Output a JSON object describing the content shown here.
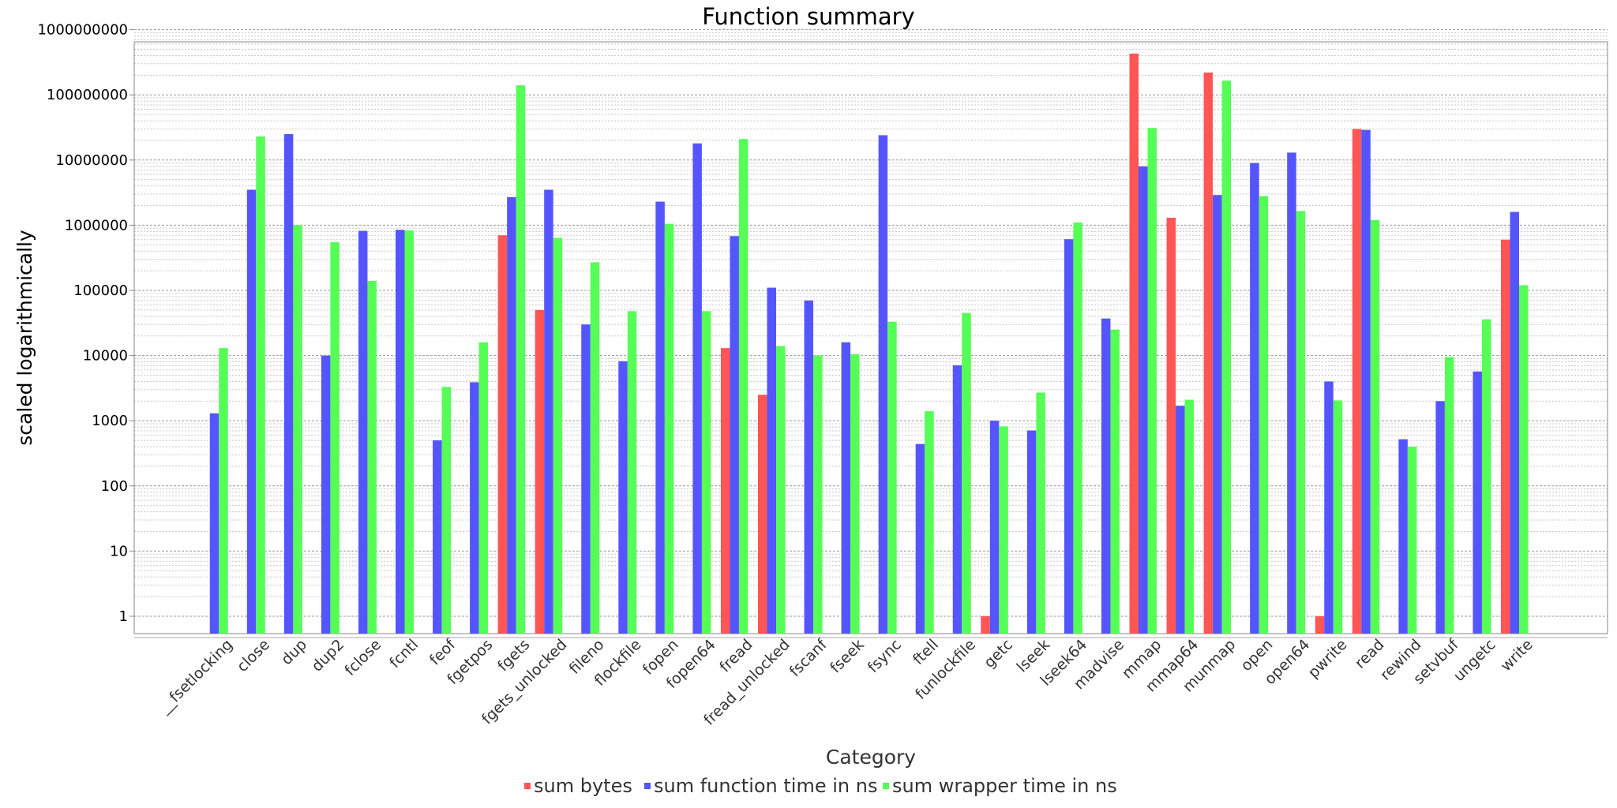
{
  "chart_data": {
    "type": "bar",
    "title": "Function summary",
    "xlabel": "Category",
    "ylabel": "scaled logarithmically",
    "yscale": "log",
    "ylim": [
      0.6,
      1000000000
    ],
    "yticks": [
      "1",
      "10",
      "100",
      "1000",
      "10000",
      "100000",
      "1000000",
      "10000000",
      "100000000",
      "1000000000"
    ],
    "grid": true,
    "legend_position": "bottom",
    "categories": [
      "__fsetlocking",
      "close",
      "dup",
      "dup2",
      "fclose",
      "fcntl",
      "feof",
      "fgetpos",
      "fgets",
      "fgets_unlocked",
      "fileno",
      "flockfile",
      "fopen",
      "fopen64",
      "fread",
      "fread_unlocked",
      "fscanf",
      "fseek",
      "fsync",
      "ftell",
      "funlockfile",
      "getc",
      "lseek",
      "lseek64",
      "madvise",
      "mmap",
      "mmap64",
      "munmap",
      "open",
      "open64",
      "pwrite",
      "read",
      "rewind",
      "setvbuf",
      "ungetc",
      "write"
    ],
    "series": [
      {
        "name": "sum bytes",
        "color": "#ff5555",
        "values": [
          null,
          null,
          null,
          null,
          null,
          null,
          null,
          null,
          700000,
          50000,
          null,
          null,
          null,
          null,
          13000,
          2500,
          null,
          null,
          null,
          null,
          null,
          1,
          null,
          null,
          null,
          430000000,
          1300000,
          220000000,
          null,
          null,
          1,
          30000000,
          null,
          null,
          null,
          600000
        ]
      },
      {
        "name": "sum function time in ns",
        "color": "#5555ff",
        "values": [
          1300,
          3500000,
          25000000,
          10000,
          820000,
          850000,
          500,
          3900,
          2700000,
          3500000,
          30000,
          8200,
          2300000,
          18000000,
          680000,
          110000,
          70000,
          16000,
          24000000,
          440,
          7100,
          1000,
          710,
          610000,
          37000,
          8000000,
          1700,
          2900000,
          9000000,
          13000000,
          4000,
          29000000,
          520,
          2000,
          5700,
          1600000
        ]
      },
      {
        "name": "sum wrapper time in ns",
        "color": "#55ff55",
        "values": [
          13000,
          23000000,
          1000000,
          550000,
          140000,
          830000,
          3300,
          16000,
          140000000,
          640000,
          270000,
          48000,
          1050000,
          48000,
          21000000,
          14000,
          10000,
          10500,
          33000,
          1400,
          45000,
          820,
          2700,
          1100000,
          25000,
          31000000,
          2100,
          165000000,
          2800000,
          1650000,
          2050,
          1200000,
          400,
          9500,
          36000,
          120000
        ]
      }
    ]
  }
}
